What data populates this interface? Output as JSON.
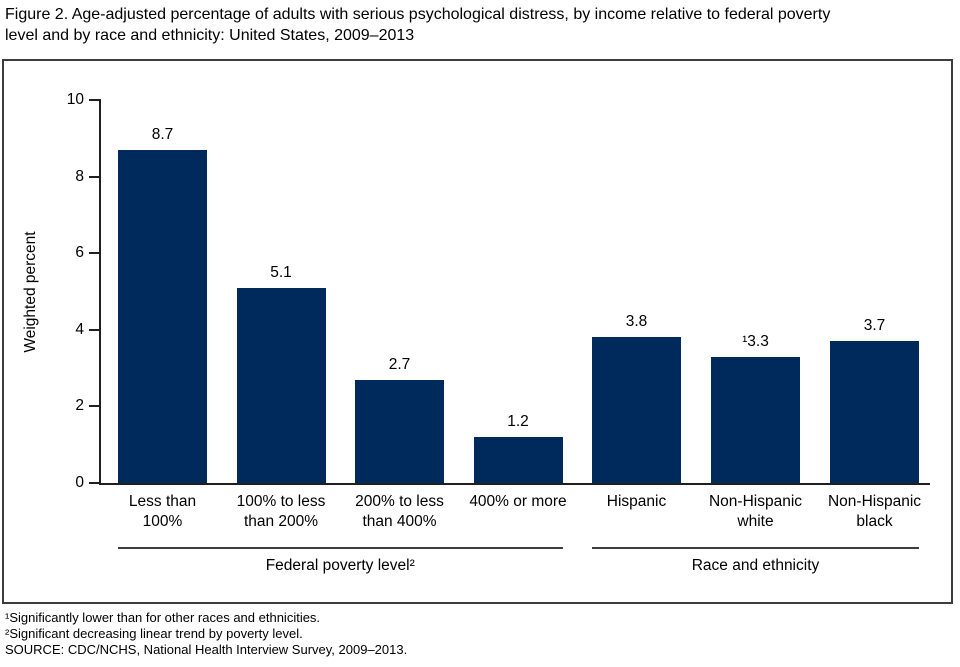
{
  "title_lines": [
    "Figure 2. Age-adjusted percentage of adults with serious psychological distress, by income relative to federal poverty",
    "level and by race and ethnicity: United States, 2009–2013"
  ],
  "chart_data": {
    "type": "bar",
    "title": "Age-adjusted percentage of adults with serious psychological distress, by income relative to federal poverty level and by race and ethnicity: United States, 2009–2013",
    "ylabel": "Weighted percent",
    "xlabel": "",
    "ylim": [
      0,
      10
    ],
    "yticks": [
      0,
      2,
      4,
      6,
      8,
      10
    ],
    "grid": false,
    "legend": "none",
    "bar_color": "#002a5c",
    "axis_color": "#1f1f1f",
    "group_line_color": "#3d3d3d",
    "categories": [
      "Less than\n100%",
      "100% to less\nthan 200%",
      "200% to less\nthan 400%",
      "400% or more",
      "Hispanic",
      "Non-Hispanic\nwhite",
      "Non-Hispanic\nblack"
    ],
    "values": [
      8.7,
      5.1,
      2.7,
      1.2,
      3.8,
      3.3,
      3.7
    ],
    "value_labels": [
      "8.7",
      "5.1",
      "2.7",
      "1.2",
      "3.8",
      "¹3.3",
      "3.7"
    ],
    "groups": [
      {
        "label": "Federal poverty level²",
        "span": [
          0,
          3
        ]
      },
      {
        "label": "Race and ethnicity",
        "span": [
          4,
          6
        ]
      }
    ]
  },
  "footnotes": [
    "¹Significantly lower than for other races and ethnicities.",
    "²Significant decreasing linear trend by poverty level.",
    "SOURCE: CDC/NCHS, National Health Interview Survey, 2009–2013."
  ]
}
